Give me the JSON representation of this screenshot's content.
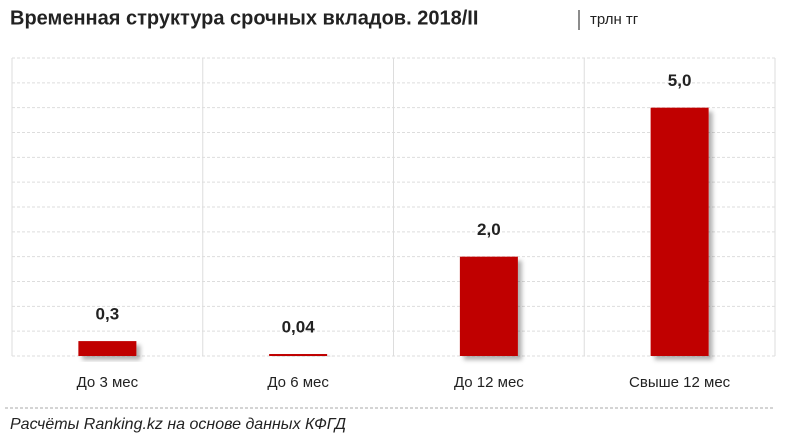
{
  "chart_data": {
    "type": "bar",
    "title": "Временная структура срочных вкладов. 2018/II",
    "unit": "трлн тг",
    "categories": [
      "До 3 мес",
      "До 6 мес",
      "До 12 мес",
      "Свыше 12 мес"
    ],
    "values": [
      0.3,
      0.04,
      2.0,
      5.0
    ],
    "value_labels": [
      "0,3",
      "0,04",
      "2,0",
      "5,0"
    ],
    "color": "#c00000",
    "ylim": [
      0,
      6
    ],
    "yticks": [
      0,
      0.5,
      1,
      1.5,
      2,
      2.5,
      3,
      3.5,
      4,
      4.5,
      5,
      5.5,
      6
    ],
    "grid": true,
    "source": "Расчёты Ranking.kz на основе данных КФГД"
  }
}
